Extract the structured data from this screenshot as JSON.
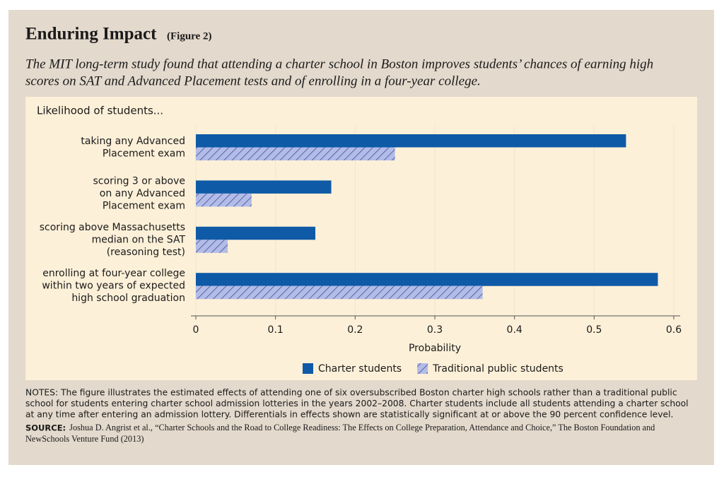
{
  "chart_data": {
    "type": "bar",
    "orientation": "horizontal",
    "title": "Enduring Impact",
    "figure_label": "(Figure 2)",
    "subtitle": [
      "The MIT long-term study found that attending a charter school in Boston improves students’ chances of earning high",
      "scores on SAT and Advanced Placement tests and of enrolling in a four-year college."
    ],
    "panel_label": "Likelihood of students...",
    "categories": [
      [
        "taking any Advanced",
        "Placement exam"
      ],
      [
        "scoring 3 or above",
        "on any Advanced",
        "Placement exam"
      ],
      [
        "scoring above Massachusetts",
        "median on the SAT",
        "(reasoning test)"
      ],
      [
        "enrolling at four-year college",
        "within two years of expected",
        "high school graduation"
      ]
    ],
    "series": [
      {
        "name": "Charter students",
        "color": "#0e5aa7",
        "hatch": false,
        "values": [
          0.54,
          0.17,
          0.15,
          0.58
        ]
      },
      {
        "name": "Traditional public students",
        "color": "#b3bce6",
        "hatch": true,
        "values": [
          0.25,
          0.07,
          0.04,
          0.36
        ]
      }
    ],
    "xlabel": "Probability",
    "xlim": [
      0,
      0.6
    ],
    "xticks": [
      0,
      0.1,
      0.2,
      0.3,
      0.4,
      0.5,
      0.6
    ],
    "grid": true,
    "legend": "bottom"
  },
  "notes": [
    "NOTES: The figure illustrates the estimated effects of attending one of six oversubscribed Boston charter high schools rather than a traditional public",
    "school for students entering charter school admission lotteries in the years 2002–2008. Charter students include all students attending a charter school",
    "at any time after entering an admission lottery. Differentials in effects shown are statistically significant at or above the 90 percent confidence level."
  ],
  "source": {
    "label": "SOURCE:",
    "lines": [
      "Joshua D. Angrist et al., “Charter Schools and the Road to College Readiness: The Effects on College Preparation, Attendance and Choice,” The Boston Foundation and",
      "NewSchools Venture Fund (2013)"
    ]
  }
}
